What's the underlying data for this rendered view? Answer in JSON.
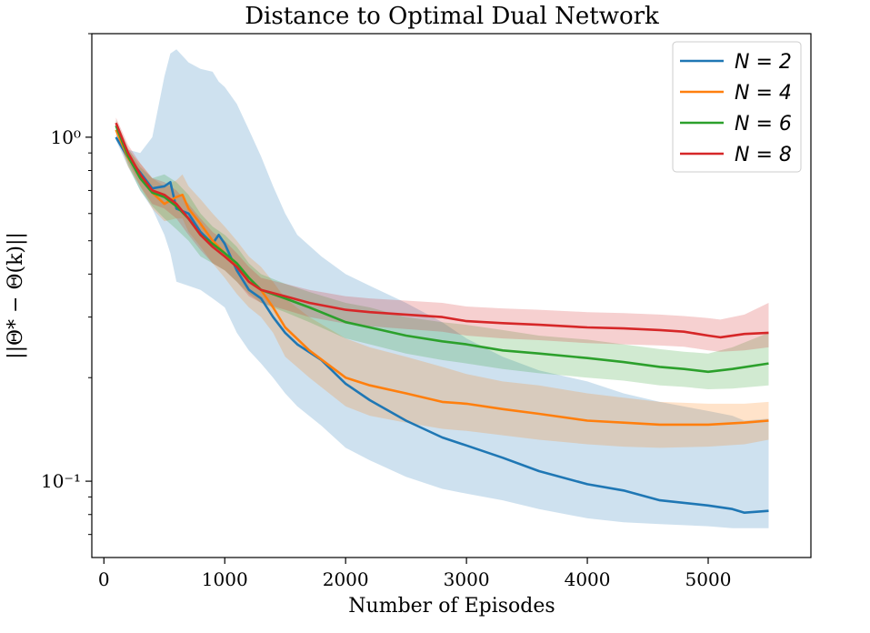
{
  "chart_data": {
    "type": "line",
    "title": "Distance to Optimal Dual Network",
    "xlabel": "Number of Episodes",
    "ylabel": "||Θ* − Θ(k)||",
    "yscale": "log",
    "xlim": [
      -100,
      5850
    ],
    "ylim": [
      0.06,
      2.0
    ],
    "xticks": [
      0,
      1000,
      2000,
      3000,
      4000,
      5000
    ],
    "xtick_labels": [
      "0",
      "1000",
      "2000",
      "3000",
      "4000",
      "5000"
    ],
    "yticks": [
      1.0,
      0.1
    ],
    "ytick_labels": [
      "10⁰",
      "10⁻¹"
    ],
    "legend_position": "top-right",
    "series": [
      {
        "name": "N = 2",
        "color": "#1f77b4",
        "x": [
          100,
          200,
          300,
          400,
          500,
          550,
          600,
          700,
          800,
          900,
          950,
          1000,
          1100,
          1200,
          1300,
          1400,
          1500,
          1600,
          1800,
          2000,
          2200,
          2500,
          2800,
          3000,
          3300,
          3600,
          4000,
          4300,
          4600,
          5000,
          5200,
          5300,
          5500
        ],
        "values": [
          1.0,
          0.87,
          0.79,
          0.71,
          0.72,
          0.74,
          0.62,
          0.6,
          0.53,
          0.49,
          0.52,
          0.49,
          0.41,
          0.36,
          0.34,
          0.3,
          0.27,
          0.25,
          0.225,
          0.192,
          0.172,
          0.15,
          0.134,
          0.127,
          0.117,
          0.107,
          0.098,
          0.094,
          0.088,
          0.085,
          0.083,
          0.081,
          0.082
        ],
        "band_upper": [
          1.02,
          0.92,
          0.9,
          1.0,
          1.5,
          1.75,
          1.8,
          1.65,
          1.58,
          1.55,
          1.45,
          1.4,
          1.25,
          1.05,
          0.88,
          0.72,
          0.6,
          0.52,
          0.45,
          0.4,
          0.37,
          0.33,
          0.29,
          0.26,
          0.23,
          0.21,
          0.195,
          0.18,
          0.17,
          0.16,
          0.155,
          0.15,
          0.152
        ],
        "band_lower": [
          0.98,
          0.82,
          0.7,
          0.62,
          0.52,
          0.46,
          0.38,
          0.37,
          0.36,
          0.34,
          0.33,
          0.32,
          0.27,
          0.24,
          0.22,
          0.2,
          0.18,
          0.165,
          0.145,
          0.125,
          0.115,
          0.103,
          0.095,
          0.092,
          0.088,
          0.083,
          0.078,
          0.076,
          0.075,
          0.074,
          0.073,
          0.073,
          0.073
        ]
      },
      {
        "name": "N = 4",
        "color": "#ff7f0e",
        "x": [
          100,
          200,
          300,
          400,
          500,
          600,
          650,
          700,
          800,
          900,
          1000,
          1100,
          1200,
          1300,
          1400,
          1500,
          1700,
          2000,
          2200,
          2500,
          2800,
          3000,
          3300,
          3600,
          4000,
          4300,
          4600,
          5000,
          5300,
          5500
        ],
        "values": [
          1.05,
          0.87,
          0.78,
          0.69,
          0.64,
          0.67,
          0.68,
          0.62,
          0.56,
          0.5,
          0.46,
          0.42,
          0.38,
          0.36,
          0.32,
          0.28,
          0.24,
          0.2,
          0.19,
          0.18,
          0.17,
          0.168,
          0.162,
          0.157,
          0.15,
          0.148,
          0.146,
          0.146,
          0.148,
          0.15
        ],
        "band_upper": [
          1.08,
          0.92,
          0.84,
          0.76,
          0.72,
          0.75,
          0.78,
          0.72,
          0.66,
          0.6,
          0.55,
          0.5,
          0.45,
          0.42,
          0.38,
          0.34,
          0.3,
          0.26,
          0.245,
          0.23,
          0.215,
          0.205,
          0.195,
          0.19,
          0.18,
          0.175,
          0.17,
          0.168,
          0.168,
          0.17
        ],
        "band_lower": [
          1.02,
          0.82,
          0.72,
          0.62,
          0.57,
          0.58,
          0.58,
          0.53,
          0.48,
          0.43,
          0.39,
          0.35,
          0.32,
          0.3,
          0.27,
          0.23,
          0.2,
          0.165,
          0.155,
          0.148,
          0.142,
          0.14,
          0.136,
          0.132,
          0.128,
          0.126,
          0.125,
          0.126,
          0.128,
          0.132
        ]
      },
      {
        "name": "N = 6",
        "color": "#2ca02c",
        "x": [
          100,
          200,
          300,
          400,
          500,
          600,
          700,
          800,
          900,
          1000,
          1100,
          1200,
          1300,
          1500,
          1700,
          2000,
          2200,
          2500,
          2800,
          3000,
          3300,
          3600,
          4000,
          4300,
          4600,
          4800,
          5000,
          5200,
          5500
        ],
        "values": [
          1.08,
          0.88,
          0.76,
          0.69,
          0.67,
          0.63,
          0.58,
          0.52,
          0.49,
          0.46,
          0.43,
          0.39,
          0.36,
          0.34,
          0.32,
          0.29,
          0.28,
          0.265,
          0.255,
          0.25,
          0.24,
          0.235,
          0.228,
          0.222,
          0.215,
          0.212,
          0.208,
          0.212,
          0.22
        ],
        "band_upper": [
          1.12,
          0.93,
          0.82,
          0.76,
          0.78,
          0.74,
          0.68,
          0.6,
          0.55,
          0.52,
          0.48,
          0.43,
          0.4,
          0.375,
          0.355,
          0.33,
          0.32,
          0.3,
          0.29,
          0.285,
          0.275,
          0.265,
          0.258,
          0.25,
          0.242,
          0.238,
          0.235,
          0.245,
          0.27
        ],
        "band_lower": [
          1.04,
          0.83,
          0.7,
          0.63,
          0.58,
          0.54,
          0.5,
          0.45,
          0.43,
          0.41,
          0.38,
          0.35,
          0.33,
          0.31,
          0.29,
          0.26,
          0.25,
          0.235,
          0.225,
          0.22,
          0.212,
          0.206,
          0.2,
          0.196,
          0.19,
          0.188,
          0.185,
          0.186,
          0.19
        ]
      },
      {
        "name": "N = 8",
        "color": "#d62728",
        "x": [
          100,
          200,
          300,
          400,
          500,
          600,
          700,
          800,
          900,
          1000,
          1100,
          1200,
          1300,
          1500,
          1700,
          2000,
          2200,
          2500,
          2800,
          3000,
          3300,
          3600,
          4000,
          4300,
          4600,
          4800,
          5000,
          5100,
          5300,
          5500
        ],
        "values": [
          1.1,
          0.9,
          0.78,
          0.7,
          0.68,
          0.64,
          0.58,
          0.52,
          0.48,
          0.45,
          0.42,
          0.38,
          0.36,
          0.345,
          0.33,
          0.315,
          0.31,
          0.305,
          0.3,
          0.292,
          0.288,
          0.285,
          0.28,
          0.278,
          0.275,
          0.272,
          0.265,
          0.262,
          0.268,
          0.27
        ],
        "band_upper": [
          1.14,
          0.95,
          0.84,
          0.76,
          0.74,
          0.7,
          0.64,
          0.58,
          0.53,
          0.5,
          0.46,
          0.42,
          0.39,
          0.375,
          0.36,
          0.345,
          0.34,
          0.335,
          0.33,
          0.322,
          0.318,
          0.315,
          0.31,
          0.308,
          0.305,
          0.302,
          0.298,
          0.295,
          0.305,
          0.33
        ],
        "band_lower": [
          1.06,
          0.85,
          0.72,
          0.64,
          0.62,
          0.58,
          0.52,
          0.47,
          0.43,
          0.41,
          0.38,
          0.345,
          0.33,
          0.315,
          0.3,
          0.287,
          0.282,
          0.277,
          0.272,
          0.265,
          0.26,
          0.257,
          0.252,
          0.25,
          0.248,
          0.246,
          0.24,
          0.238,
          0.24,
          0.245
        ]
      }
    ]
  }
}
